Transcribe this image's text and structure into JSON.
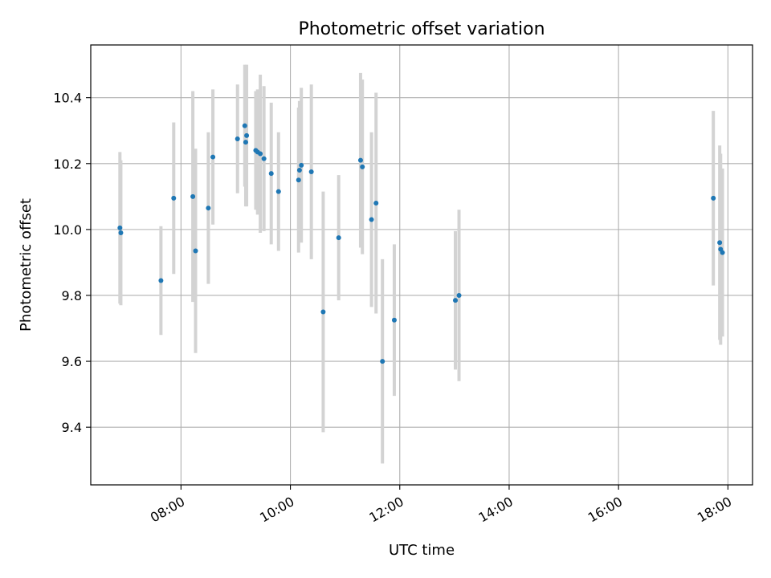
{
  "chart_data": {
    "type": "scatter",
    "title": "Photometric offset variation",
    "xlabel": "UTC time",
    "ylabel": "Photometric offset",
    "x_range_hours": [
      6.35,
      18.45
    ],
    "ylim": [
      9.225,
      10.56
    ],
    "x_ticks": [
      "08:00",
      "10:00",
      "12:00",
      "14:00",
      "16:00",
      "18:00"
    ],
    "y_ticks": [
      "9.4",
      "9.6",
      "9.8",
      "10.0",
      "10.2",
      "10.4"
    ],
    "grid": true,
    "colors": {
      "point": "#1f77b4",
      "errorbar": "#d3d3d3",
      "grid": "#b0b0b0"
    },
    "points": [
      {
        "x": "06:53",
        "y": 10.005,
        "err": 0.23
      },
      {
        "x": "06:54",
        "y": 9.99,
        "err": 0.22
      },
      {
        "x": "07:38",
        "y": 9.845,
        "err": 0.165
      },
      {
        "x": "07:52",
        "y": 10.095,
        "err": 0.23
      },
      {
        "x": "08:13",
        "y": 10.1,
        "err": 0.32
      },
      {
        "x": "08:16",
        "y": 9.935,
        "err": 0.31
      },
      {
        "x": "08:30",
        "y": 10.065,
        "err": 0.23
      },
      {
        "x": "08:35",
        "y": 10.22,
        "err": 0.205
      },
      {
        "x": "09:02",
        "y": 10.275,
        "err": 0.165
      },
      {
        "x": "09:10",
        "y": 10.315,
        "err": 0.185
      },
      {
        "x": "09:11",
        "y": 10.265,
        "err": 0.195
      },
      {
        "x": "09:12",
        "y": 10.285,
        "err": 0.215
      },
      {
        "x": "09:22",
        "y": 10.24,
        "err": 0.18
      },
      {
        "x": "09:24",
        "y": 10.235,
        "err": 0.19
      },
      {
        "x": "09:27",
        "y": 10.23,
        "err": 0.24
      },
      {
        "x": "09:31",
        "y": 10.215,
        "err": 0.22
      },
      {
        "x": "09:39",
        "y": 10.17,
        "err": 0.215
      },
      {
        "x": "09:47",
        "y": 10.115,
        "err": 0.18
      },
      {
        "x": "10:09",
        "y": 10.15,
        "err": 0.22
      },
      {
        "x": "10:10",
        "y": 10.18,
        "err": 0.21
      },
      {
        "x": "10:12",
        "y": 10.195,
        "err": 0.235
      },
      {
        "x": "10:23",
        "y": 10.175,
        "err": 0.265
      },
      {
        "x": "10:36",
        "y": 9.75,
        "err": 0.365
      },
      {
        "x": "10:53",
        "y": 9.975,
        "err": 0.19
      },
      {
        "x": "11:17",
        "y": 10.21,
        "err": 0.265
      },
      {
        "x": "11:19",
        "y": 10.19,
        "err": 0.265
      },
      {
        "x": "11:29",
        "y": 10.03,
        "err": 0.265
      },
      {
        "x": "11:34",
        "y": 10.08,
        "err": 0.335
      },
      {
        "x": "11:41",
        "y": 9.6,
        "err": 0.31
      },
      {
        "x": "11:54",
        "y": 9.725,
        "err": 0.23
      },
      {
        "x": "13:01",
        "y": 9.785,
        "err": 0.21
      },
      {
        "x": "13:05",
        "y": 9.8,
        "err": 0.26
      },
      {
        "x": "17:44",
        "y": 10.095,
        "err": 0.265
      },
      {
        "x": "17:51",
        "y": 9.96,
        "err": 0.295
      },
      {
        "x": "17:52",
        "y": 9.94,
        "err": 0.29
      },
      {
        "x": "17:54",
        "y": 9.93,
        "err": 0.255
      }
    ]
  }
}
